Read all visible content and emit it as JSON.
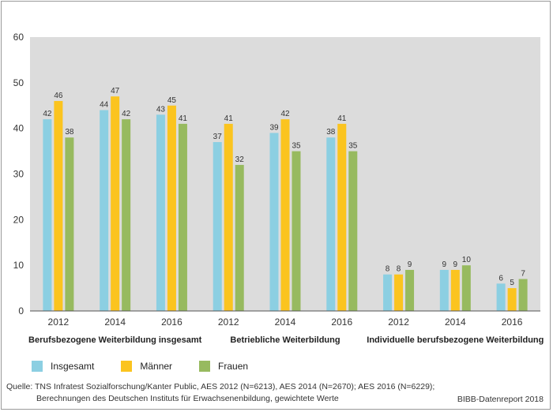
{
  "chart_data": {
    "type": "bar",
    "ylim": [
      0,
      60
    ],
    "yticks": [
      0,
      10,
      20,
      30,
      40,
      50,
      60
    ],
    "grid": false,
    "groups": [
      {
        "label": "Berufsbezogene Weiterbildung insgesamt",
        "categories": [
          "2012",
          "2014",
          "2016"
        ]
      },
      {
        "label": "Betriebliche Weiterbildung",
        "categories": [
          "2012",
          "2014",
          "2016"
        ]
      },
      {
        "label": "Individuelle berufsbezogene Weiterbildung",
        "categories": [
          "2012",
          "2014",
          "2016"
        ]
      }
    ],
    "categories": [
      "2012",
      "2014",
      "2016",
      "2012",
      "2014",
      "2016",
      "2012",
      "2014",
      "2016"
    ],
    "series": [
      {
        "name": "Insgesamt",
        "color": "#8ccfe2",
        "values": [
          42,
          44,
          43,
          37,
          39,
          38,
          8,
          9,
          6
        ]
      },
      {
        "name": "Männer",
        "color": "#fbc41f",
        "values": [
          46,
          47,
          45,
          41,
          42,
          41,
          8,
          9,
          5
        ]
      },
      {
        "name": "Frauen",
        "color": "#97ba5f",
        "values": [
          38,
          42,
          41,
          32,
          35,
          35,
          9,
          10,
          7
        ]
      }
    ],
    "legend_position": "bottom-left",
    "plot_background": "#dcdcdc"
  },
  "source": {
    "line1": "Quelle: TNS Infratest Sozialforschung/Kanter Public, AES 2012 (N=6213), AES 2014 (N=2670); AES 2016 (N=6229);",
    "line2": "Berechnungen des Deutschen Instituts für Erwachsenenbildung, gewichtete Werte"
  },
  "credit": "BIBB-Datenreport 2018"
}
